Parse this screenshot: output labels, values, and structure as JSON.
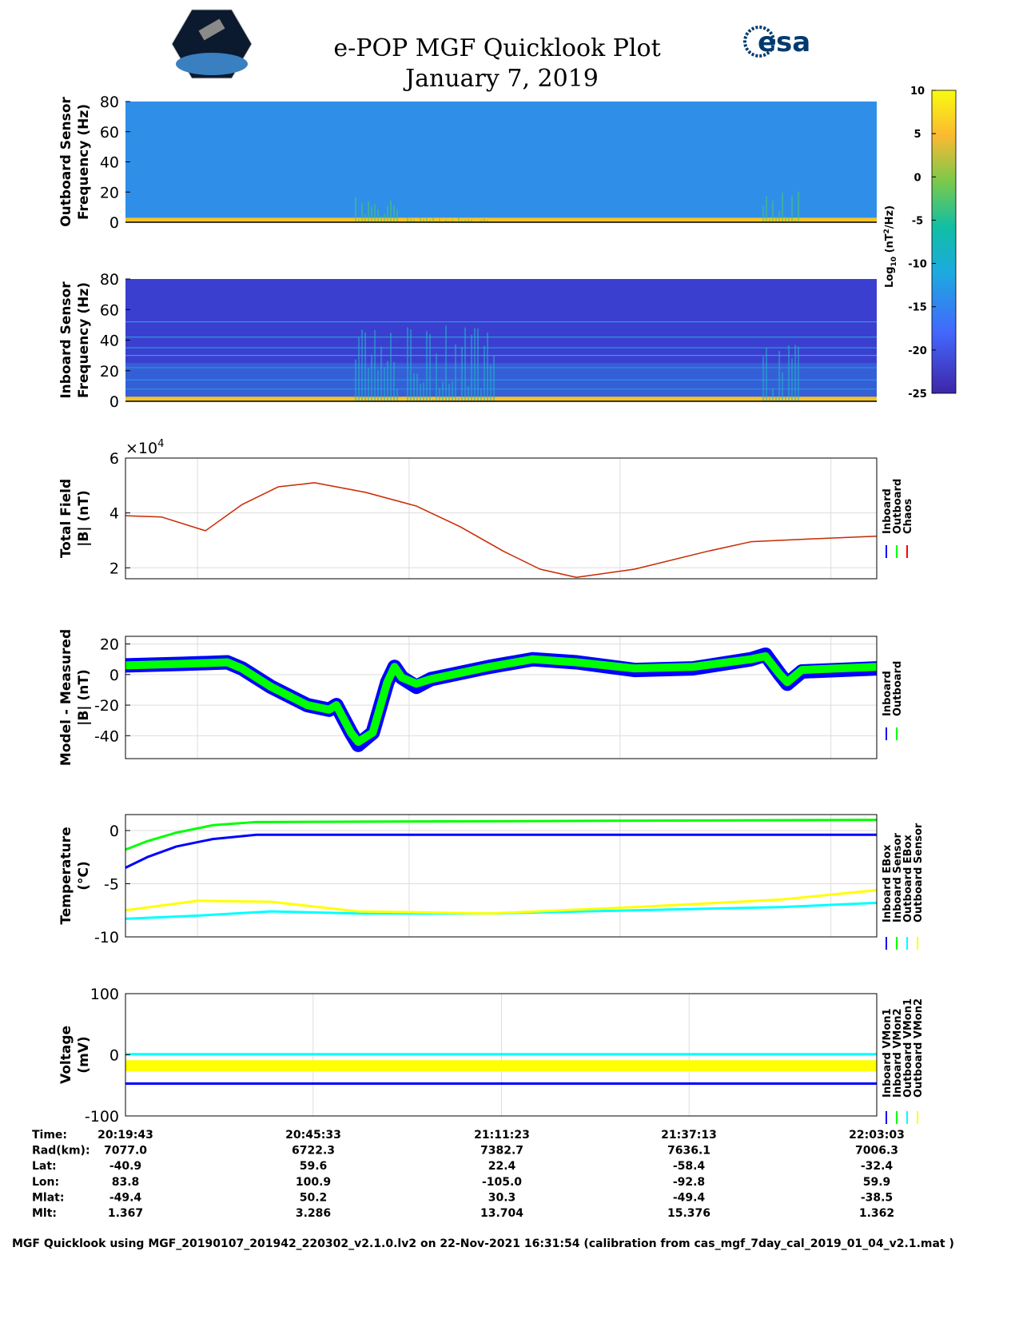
{
  "header": {
    "title": "e-POP MGF Quicklook Plot",
    "date": "January 7, 2019",
    "logo_left": "CASSIOPE",
    "logo_right": "esa"
  },
  "colorbar": {
    "label": "Log10 (nT^2/Hz)",
    "label_base": "Log",
    "label_sub": "10",
    "label_rest": " (nT",
    "label_sup": "2",
    "label_end": "/Hz)",
    "ticks": [
      "10",
      "5",
      "0",
      "-5",
      "-10",
      "-15",
      "-20",
      "-25"
    ],
    "range": [
      -25,
      10
    ]
  },
  "chart_data": [
    {
      "type": "heatmap",
      "id": "outboard-spec",
      "ylabel": [
        "Outboard Sensor",
        "Frequency (Hz)"
      ],
      "ylim": [
        0,
        80
      ],
      "yticks": [
        "80",
        "60",
        "40",
        "20",
        "0"
      ],
      "background_level": -16,
      "low_freq_level": 5
    },
    {
      "type": "heatmap",
      "id": "inboard-spec",
      "ylabel": [
        "Inboard Sensor",
        "Frequency (Hz)"
      ],
      "ylim": [
        0,
        80
      ],
      "yticks": [
        "80",
        "60",
        "40",
        "20",
        "0"
      ],
      "background_level": -22,
      "low_freq_level": 5
    },
    {
      "type": "line",
      "id": "total-field",
      "ylabel": [
        "Total Field",
        "|B| (nT)"
      ],
      "multiplier": "×10",
      "multiplier_exp": "4",
      "ylim": [
        1.6,
        6
      ],
      "yticks": [
        2,
        4,
        6
      ],
      "xlim": [
        0,
        103.3
      ],
      "xgrid": [
        9.9,
        39,
        68,
        97
      ],
      "legend": [
        "Inboard",
        "Outboard",
        "Chaos"
      ],
      "colors": [
        "#0000ff",
        "#00ff00",
        "#ff0000"
      ],
      "series": [
        {
          "name": "Chaos",
          "points": [
            [
              0,
              3.9
            ],
            [
              5,
              3.85
            ],
            [
              11,
              3.35
            ],
            [
              16,
              4.3
            ],
            [
              21,
              4.95
            ],
            [
              26,
              5.1
            ],
            [
              33,
              4.75
            ],
            [
              40,
              4.25
            ],
            [
              46,
              3.5
            ],
            [
              52,
              2.6
            ],
            [
              57,
              1.95
            ],
            [
              62,
              1.65
            ],
            [
              70,
              1.95
            ],
            [
              80,
              2.6
            ],
            [
              86,
              2.95
            ],
            [
              94,
              3.05
            ],
            [
              103.3,
              3.15
            ]
          ]
        }
      ]
    },
    {
      "type": "area",
      "id": "model-measured",
      "ylabel": [
        "Model - Measured",
        "|B| (nT)"
      ],
      "ylim": [
        -55,
        25
      ],
      "yticks": [
        20,
        0,
        -20,
        -40
      ],
      "xlim": [
        0,
        103.3
      ],
      "xgrid": [
        9.9,
        39,
        68,
        97
      ],
      "legend": [
        "Inboard",
        "Outboard"
      ],
      "colors": [
        "#0000ff",
        "#00ff00"
      ],
      "series": [
        {
          "name": "Inboard",
          "width": 18,
          "points": [
            [
              0,
              6
            ],
            [
              8,
              7
            ],
            [
              14,
              8
            ],
            [
              16,
              4
            ],
            [
              20,
              -8
            ],
            [
              25,
              -20
            ],
            [
              28,
              -23
            ],
            [
              29,
              -20
            ],
            [
              31,
              -38
            ],
            [
              32,
              -46
            ],
            [
              34,
              -38
            ],
            [
              36,
              -5
            ],
            [
              37,
              5
            ],
            [
              38,
              -2
            ],
            [
              40,
              -8
            ],
            [
              42,
              -3
            ],
            [
              50,
              5
            ],
            [
              56,
              10
            ],
            [
              62,
              8
            ],
            [
              70,
              3
            ],
            [
              78,
              4
            ],
            [
              86,
              10
            ],
            [
              88,
              13
            ],
            [
              90,
              0
            ],
            [
              91,
              -6
            ],
            [
              93,
              2
            ],
            [
              103.3,
              4
            ]
          ]
        },
        {
          "name": "Outboard",
          "width": 10,
          "points": [
            [
              0,
              6
            ],
            [
              8,
              7
            ],
            [
              14,
              8
            ],
            [
              16,
              4
            ],
            [
              20,
              -8
            ],
            [
              25,
              -20
            ],
            [
              28,
              -23
            ],
            [
              29,
              -20
            ],
            [
              31,
              -38
            ],
            [
              32,
              -44
            ],
            [
              34,
              -38
            ],
            [
              36,
              -5
            ],
            [
              37,
              5
            ],
            [
              38,
              -2
            ],
            [
              40,
              -6
            ],
            [
              42,
              -3
            ],
            [
              50,
              5
            ],
            [
              56,
              10
            ],
            [
              62,
              8
            ],
            [
              70,
              4
            ],
            [
              78,
              5
            ],
            [
              86,
              10
            ],
            [
              88,
              12
            ],
            [
              90,
              0
            ],
            [
              91,
              -5
            ],
            [
              93,
              3
            ],
            [
              103.3,
              5
            ]
          ]
        }
      ]
    },
    {
      "type": "line",
      "id": "temperature",
      "ylabel": [
        "Temperature",
        "(°C)"
      ],
      "ylim": [
        -10,
        1.5
      ],
      "yticks": [
        0,
        -5,
        -10
      ],
      "xlim": [
        0,
        103.3
      ],
      "xgrid": [
        9.9,
        39,
        68,
        97
      ],
      "legend": [
        "Inboard EBox",
        "Inboard Sensor",
        "Outboard EBox",
        "Outboard Sensor"
      ],
      "colors": [
        "#0000ff",
        "#00ff00",
        "#00ffff",
        "#ffff00"
      ],
      "series": [
        {
          "name": "Inboard EBox",
          "points": [
            [
              0,
              -3.5
            ],
            [
              3,
              -2.5
            ],
            [
              7,
              -1.5
            ],
            [
              12,
              -0.8
            ],
            [
              18,
              -0.4
            ],
            [
              103.3,
              -0.4
            ]
          ]
        },
        {
          "name": "Inboard Sensor",
          "points": [
            [
              0,
              -1.8
            ],
            [
              3,
              -1
            ],
            [
              7,
              -0.2
            ],
            [
              12,
              0.5
            ],
            [
              18,
              0.8
            ],
            [
              103.3,
              1
            ]
          ]
        },
        {
          "name": "Outboard EBox",
          "points": [
            [
              0,
              -8.3
            ],
            [
              10,
              -8
            ],
            [
              20,
              -7.6
            ],
            [
              32,
              -7.8
            ],
            [
              50,
              -7.8
            ],
            [
              70,
              -7.5
            ],
            [
              90,
              -7.2
            ],
            [
              103.3,
              -6.8
            ]
          ]
        },
        {
          "name": "Outboard Sensor",
          "points": [
            [
              0,
              -7.5
            ],
            [
              10,
              -6.6
            ],
            [
              20,
              -6.7
            ],
            [
              32,
              -7.6
            ],
            [
              50,
              -7.8
            ],
            [
              70,
              -7.2
            ],
            [
              90,
              -6.5
            ],
            [
              103.3,
              -5.6
            ]
          ]
        }
      ]
    },
    {
      "type": "line",
      "id": "voltage",
      "ylabel": [
        "Voltage",
        "(mV)"
      ],
      "ylim": [
        -100,
        100
      ],
      "yticks": [
        100,
        0,
        -100
      ],
      "xlim": [
        0,
        103.3
      ],
      "xgrid": [
        25.8,
        51.7,
        77.5
      ],
      "legend": [
        "Inboard VMon1",
        "Inboard VMon2",
        "Outboard VMon1",
        "Outboard VMon2"
      ],
      "colors": [
        "#0000ff",
        "#00ff00",
        "#00ffff",
        "#ffff00"
      ],
      "series": [
        {
          "name": "Inboard VMon1",
          "points": [
            [
              0,
              -47
            ],
            [
              103.3,
              -47
            ]
          ]
        },
        {
          "name": "Inboard VMon2",
          "points": [
            [
              0,
              -12
            ],
            [
              103.3,
              -12
            ]
          ]
        },
        {
          "name": "Outboard VMon1",
          "points": [
            [
              0,
              1
            ],
            [
              103.3,
              1
            ]
          ]
        },
        {
          "name": "Outboard VMon2",
          "width": 14,
          "points": [
            [
              0,
              -18
            ],
            [
              103.3,
              -18
            ]
          ]
        }
      ]
    }
  ],
  "table": {
    "labels": [
      "Time:",
      "Rad(km):",
      "Lat:",
      "Lon:",
      "Mlat:",
      "Mlt:"
    ],
    "columns": [
      [
        "20:19:43",
        "7077.0",
        "-40.9",
        "83.8",
        "-49.4",
        "1.367"
      ],
      [
        "20:45:33",
        "6722.3",
        "59.6",
        "100.9",
        "50.2",
        "3.286"
      ],
      [
        "21:11:23",
        "7382.7",
        "22.4",
        "-105.0",
        "30.3",
        "13.704"
      ],
      [
        "21:37:13",
        "7636.1",
        "-58.4",
        "-92.8",
        "-49.4",
        "15.376"
      ],
      [
        "22:03:03",
        "7006.3",
        "-32.4",
        "59.9",
        "-38.5",
        "1.362"
      ]
    ]
  },
  "footer": "MGF Quicklook using MGF_20190107_201942_220302_v2.1.0.lv2 on 22-Nov-2021 16:31:54 (calibration from cas_mgf_7day_cal_2019_01_04_v2.1.mat )"
}
